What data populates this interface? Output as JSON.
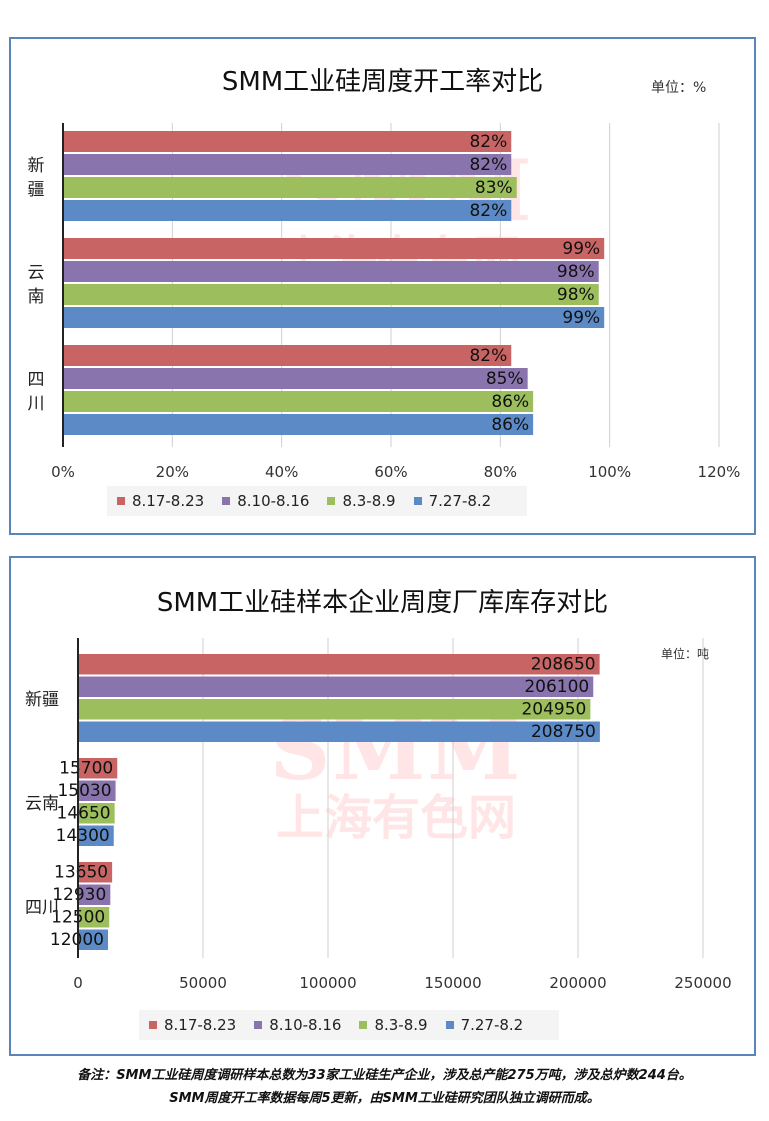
{
  "charts": [
    {
      "title": "SMM工业硅周度开工率对比",
      "unit": "单位：%",
      "watermark": {
        "top": "SMM",
        "bottom": "上海有色网"
      }
    },
    {
      "title": "SMM工业硅样本企业周度厂库库存对比",
      "unit": "单位：吨",
      "watermark": {
        "top": "SMM",
        "bottom": "上海有色网"
      }
    }
  ],
  "chart_data": [
    {
      "type": "bar",
      "orientation": "horizontal",
      "title": "SMM工业硅周度开工率对比",
      "unit": "单位：%",
      "categories": [
        "新疆",
        "云南",
        "四川"
      ],
      "series": [
        {
          "name": "8.17-8.23",
          "color": "#c86564",
          "values": [
            82,
            99,
            82
          ],
          "labels": [
            "82%",
            "99%",
            "82%"
          ]
        },
        {
          "name": "8.10-8.16",
          "color": "#8a74ae",
          "values": [
            82,
            98,
            85
          ],
          "labels": [
            "82%",
            "98%",
            "85%"
          ]
        },
        {
          "name": "8.3-8.9",
          "color": "#9cbe5c",
          "values": [
            83,
            98,
            86
          ],
          "labels": [
            "83%",
            "98%",
            "86%"
          ]
        },
        {
          "name": "7.27-8.2",
          "color": "#5b8ac6",
          "values": [
            82,
            99,
            86
          ],
          "labels": [
            "82%",
            "99%",
            "86%"
          ]
        }
      ],
      "xlim": [
        0,
        120
      ],
      "xticks": [
        0,
        20,
        40,
        60,
        80,
        100,
        120
      ],
      "xtick_labels": [
        "0%",
        "20%",
        "40%",
        "60%",
        "80%",
        "100%",
        "120%"
      ],
      "grid": true,
      "legend_position": "bottom"
    },
    {
      "type": "bar",
      "orientation": "horizontal",
      "title": "SMM工业硅样本企业周度厂库库存对比",
      "unit": "单位：吨",
      "categories": [
        "新疆",
        "云南",
        "四川"
      ],
      "series": [
        {
          "name": "8.17-8.23",
          "color": "#c86564",
          "values": [
            208650,
            15700,
            13650
          ],
          "labels": [
            "208650",
            "15700",
            "13650"
          ]
        },
        {
          "name": "8.10-8.16",
          "color": "#8a74ae",
          "values": [
            206100,
            15030,
            12930
          ],
          "labels": [
            "206100",
            "15030",
            "12930"
          ]
        },
        {
          "name": "8.3-8.9",
          "color": "#9cbe5c",
          "values": [
            204950,
            14650,
            12500
          ],
          "labels": [
            "204950",
            "14650",
            "12500"
          ]
        },
        {
          "name": "7.27-8.2",
          "color": "#5b8ac6",
          "values": [
            208750,
            14300,
            12000
          ],
          "labels": [
            "208750",
            "14300",
            "12000"
          ]
        }
      ],
      "xlim": [
        0,
        250000
      ],
      "xticks": [
        0,
        50000,
        100000,
        150000,
        200000,
        250000
      ],
      "xtick_labels": [
        "0",
        "50000",
        "100000",
        "150000",
        "200000",
        "250000"
      ],
      "grid": true,
      "legend_position": "bottom"
    }
  ],
  "footnote": {
    "line1": "备注：SMM工业硅周度调研样本总数为33家工业硅生产企业，涉及总产能275万吨，涉及总炉数244台。",
    "line2": "SMM周度开工率数据每周5更新，由SMM工业硅研究团队独立调研而成。"
  }
}
